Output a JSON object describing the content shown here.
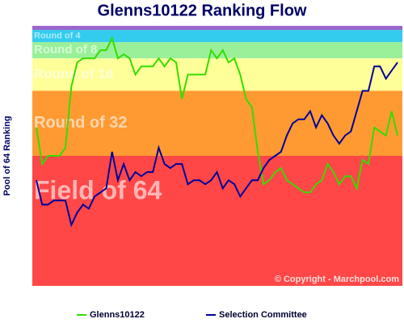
{
  "chart_data": {
    "type": "line",
    "title": "Glenns10122 Ranking Flow",
    "y_label": "Pool of 64 Ranking",
    "copyright": "© Copyright - Marchpool.com",
    "ylim": [
      64,
      0
    ],
    "bands": [
      {
        "name": "Field of 64",
        "from": 64,
        "to": 32,
        "color": "#ff4747"
      },
      {
        "name": "Round of 32",
        "from": 32,
        "to": 16,
        "color": "#ff9a33"
      },
      {
        "name": "Round of 16",
        "from": 16,
        "to": 8,
        "color": "#ffff99"
      },
      {
        "name": "Round of 8",
        "from": 8,
        "to": 4,
        "color": "#99f099"
      },
      {
        "name": "Round of 4",
        "from": 4,
        "to": 1,
        "color": "#33ccee"
      },
      {
        "from": 1,
        "to": 0,
        "color": "#9966cc"
      }
    ],
    "series": [
      {
        "name": "Glenns10122",
        "color": "#33dd00",
        "values": [
          25,
          34,
          32,
          32,
          32,
          30,
          15,
          9,
          8,
          8,
          8,
          6,
          6,
          3,
          8,
          7,
          8,
          12,
          10,
          10,
          10,
          8,
          10,
          8,
          9,
          18,
          12,
          12,
          12,
          12,
          6,
          8,
          6,
          9,
          8,
          12,
          18,
          20,
          31,
          39,
          38,
          36,
          35,
          38,
          39,
          40,
          41,
          41,
          39,
          38,
          34,
          36,
          39,
          37,
          37,
          40,
          33,
          34,
          25,
          26,
          27,
          21,
          27
        ]
      },
      {
        "name": "Selection Committee",
        "color": "#000099",
        "values": [
          38,
          44,
          44,
          43,
          43,
          43,
          49,
          46,
          44,
          45,
          42,
          41,
          40,
          31,
          38,
          34,
          38,
          36,
          37,
          36,
          36,
          30,
          34,
          35,
          34,
          34,
          39,
          38,
          38,
          39,
          38,
          36,
          40,
          38,
          39,
          42,
          40,
          38,
          38,
          35,
          33,
          32,
          31,
          27,
          24,
          23,
          23,
          21,
          25,
          22,
          24,
          27,
          29,
          27,
          26,
          21,
          16,
          16,
          10,
          10,
          13,
          11,
          9
        ]
      }
    ]
  }
}
